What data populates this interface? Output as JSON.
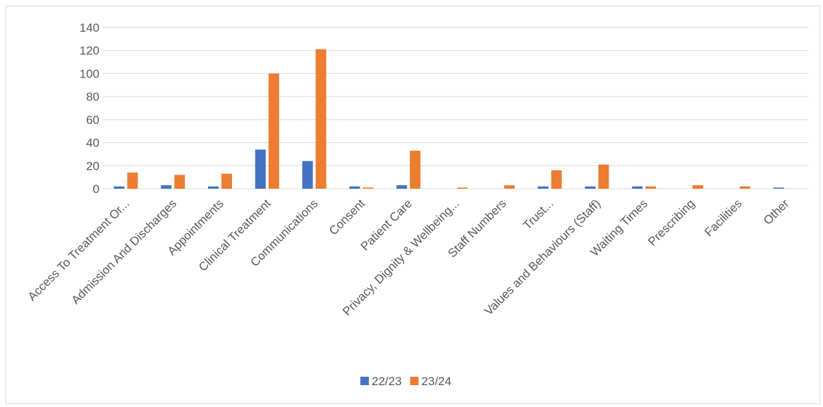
{
  "chart_data": {
    "type": "bar",
    "categories": [
      "Access To Treatment Or...",
      "Admission And Discharges",
      "Appointments",
      "Clinical Treatment",
      "Communications",
      "Consent",
      "Patient Care",
      "Privacy, Dignity & Wellbeing...",
      "Staff Numbers",
      "Trust...",
      "Values and Behaviours (Staff)",
      "Waiting Times",
      "Prescribing",
      "Facilities",
      "Other"
    ],
    "series": [
      {
        "name": "22/23",
        "color": "#4472c4",
        "values": [
          2,
          3,
          2,
          34,
          24,
          2,
          3,
          0,
          0,
          2,
          2,
          2,
          0,
          0,
          1
        ]
      },
      {
        "name": "23/24",
        "color": "#ed7d31",
        "values": [
          14,
          12,
          13,
          100,
          121,
          1,
          33,
          1,
          3,
          16,
          21,
          2,
          3,
          2,
          0
        ]
      }
    ],
    "title": "",
    "xlabel": "",
    "ylabel": "",
    "ylim": [
      0,
      140
    ],
    "yticks": [
      0,
      20,
      40,
      60,
      80,
      100,
      120,
      140
    ],
    "grid": true,
    "legend_position": "bottom"
  }
}
